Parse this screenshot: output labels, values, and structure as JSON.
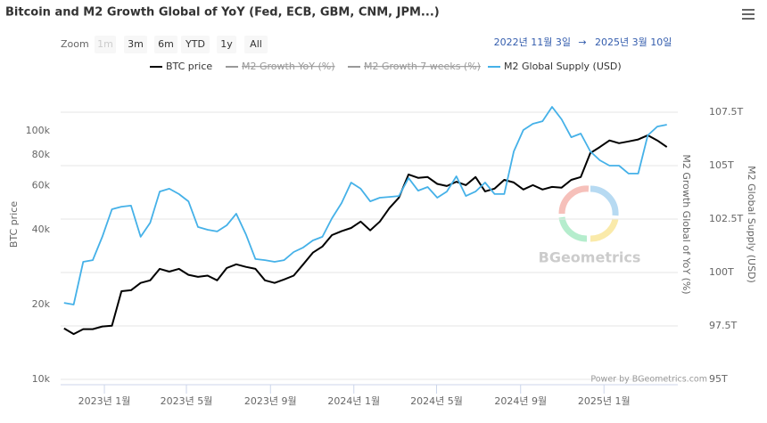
{
  "chart_data": {
    "type": "line",
    "title": "Bitcoin and M2 Growth Global of YoY (Fed, ECB, GBM, CNM, JPM...)",
    "range_selector": {
      "zoom_label": "Zoom",
      "buttons": [
        "1m",
        "3m",
        "6m",
        "YTD",
        "1y",
        "All"
      ],
      "from": "2022년 11월 3일",
      "arrow": "→",
      "to": "2025년 3월 10일"
    },
    "credits": "Power by BGeometrics.com",
    "watermark": "BGeometrics",
    "y_label": "BTC price",
    "y2_label": "M2 Growth Global of YoY (%)",
    "y3_label": "M2 Global Supply (USD)",
    "log_y": true,
    "grid": true,
    "x": [
      "2022-11-03",
      "2022-11-17",
      "2022-12-01",
      "2022-12-15",
      "2022-12-29",
      "2023-01-12",
      "2023-01-26",
      "2023-02-09",
      "2023-02-23",
      "2023-03-09",
      "2023-03-23",
      "2023-04-06",
      "2023-04-20",
      "2023-05-04",
      "2023-05-18",
      "2023-06-01",
      "2023-06-15",
      "2023-06-29",
      "2023-07-13",
      "2023-07-27",
      "2023-08-10",
      "2023-08-24",
      "2023-09-07",
      "2023-09-21",
      "2023-10-05",
      "2023-10-19",
      "2023-11-02",
      "2023-11-16",
      "2023-11-30",
      "2023-12-14",
      "2023-12-28",
      "2024-01-11",
      "2024-01-25",
      "2024-02-08",
      "2024-02-22",
      "2024-03-07",
      "2024-03-21",
      "2024-04-04",
      "2024-04-18",
      "2024-05-02",
      "2024-05-16",
      "2024-05-30",
      "2024-06-13",
      "2024-06-27",
      "2024-07-11",
      "2024-07-25",
      "2024-08-08",
      "2024-08-22",
      "2024-09-05",
      "2024-09-19",
      "2024-10-03",
      "2024-10-17",
      "2024-10-31",
      "2024-11-14",
      "2024-11-28",
      "2024-12-12",
      "2024-12-26",
      "2025-01-09",
      "2025-01-23",
      "2025-02-06",
      "2025-02-20",
      "2025-03-06",
      "2025-03-20",
      "2025-04-03"
    ],
    "xlim": [
      "2022-10-29",
      "2025-04-19"
    ],
    "xticks": [
      {
        "value": "2023-01-01",
        "label": "2023년 1월"
      },
      {
        "value": "2023-05-01",
        "label": "2023년 5월"
      },
      {
        "value": "2023-09-01",
        "label": "2023년 9월"
      },
      {
        "value": "2024-01-01",
        "label": "2024년 1월"
      },
      {
        "value": "2024-05-01",
        "label": "2024년 5월"
      },
      {
        "value": "2024-09-01",
        "label": "2024년 9월"
      },
      {
        "value": "2025-01-01",
        "label": "2025년 1월"
      }
    ],
    "ylim": [
      9500,
      130000
    ],
    "yticks": [
      {
        "value": 10000,
        "label": "10k"
      },
      {
        "value": 20000,
        "label": "20k"
      },
      {
        "value": 40000,
        "label": "40k"
      },
      {
        "value": 60000,
        "label": "60k"
      },
      {
        "value": 80000,
        "label": "80k"
      },
      {
        "value": 100000,
        "label": "100k"
      }
    ],
    "y2lim": [
      94.75,
      107.96
    ],
    "y2ticks": [
      {
        "value": 95,
        "label": "95T"
      },
      {
        "value": 97.5,
        "label": "97.5T"
      },
      {
        "value": 100,
        "label": "100T"
      },
      {
        "value": 102.5,
        "label": "102.5T"
      },
      {
        "value": 105,
        "label": "105T"
      },
      {
        "value": 107.5,
        "label": "107.5T"
      }
    ],
    "series": [
      {
        "name": "BTC price",
        "color": "#000000",
        "values": [
          16000,
          15200,
          15900,
          15900,
          16300,
          16400,
          22600,
          22800,
          24400,
          25000,
          27800,
          27100,
          27800,
          26300,
          25800,
          26100,
          25000,
          28000,
          29000,
          28300,
          27800,
          25000,
          24400,
          25200,
          26100,
          29000,
          32300,
          34200,
          38000,
          39400,
          40600,
          43100,
          39700,
          43100,
          48800,
          53800,
          66700,
          64600,
          65100,
          61100,
          59900,
          62300,
          60400,
          65100,
          57000,
          58500,
          63400,
          61900,
          58000,
          60400,
          58000,
          59400,
          59000,
          63400,
          65100,
          81300,
          86000,
          91400,
          89100,
          90600,
          92200,
          95900,
          91400,
          86000
        ]
      },
      {
        "name": "M2 Growth YoY (%)",
        "color": "#999999",
        "visible": false
      },
      {
        "name": "M2 Growth 7 weeks (%)",
        "color": "#999999",
        "visible": false
      },
      {
        "name": "M2 Global Supply (USD)",
        "color": "#45b1e8",
        "axis": "y2",
        "values": [
          98.58,
          98.5,
          100.5,
          100.58,
          101.67,
          102.96,
          103.08,
          103.13,
          101.67,
          102.33,
          103.79,
          103.92,
          103.67,
          103.33,
          102.13,
          102.0,
          101.92,
          102.21,
          102.75,
          101.79,
          100.63,
          100.58,
          100.5,
          100.58,
          100.96,
          101.17,
          101.5,
          101.67,
          102.54,
          103.25,
          104.21,
          103.92,
          103.33,
          103.5,
          103.54,
          103.58,
          104.42,
          103.83,
          104.0,
          103.5,
          103.79,
          104.5,
          103.58,
          103.79,
          104.21,
          103.67,
          103.67,
          105.67,
          106.67,
          106.96,
          107.08,
          107.75,
          107.17,
          106.33,
          106.5,
          105.67,
          105.25,
          105.0,
          105.0,
          104.63,
          104.63,
          106.42,
          106.83,
          106.92
        ]
      }
    ]
  }
}
